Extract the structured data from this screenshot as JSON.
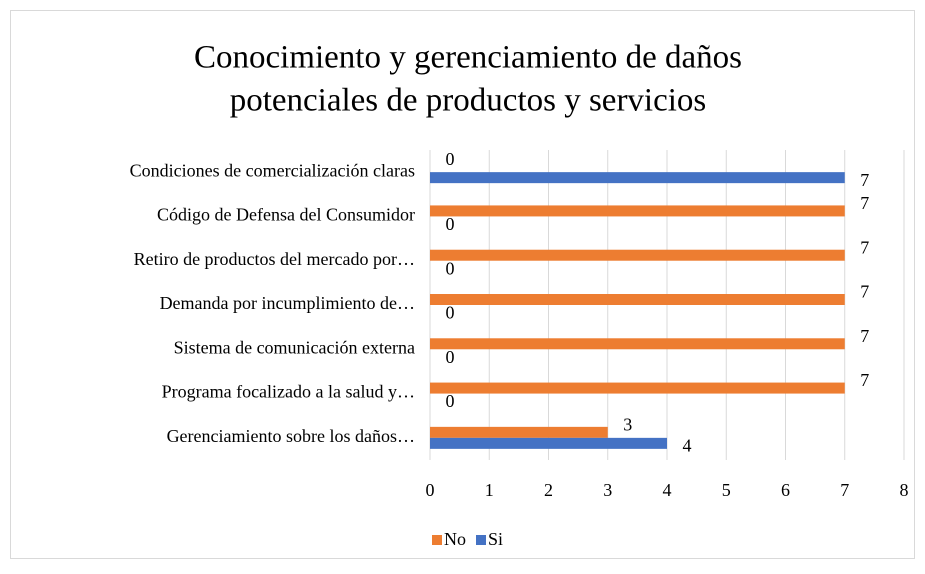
{
  "chart_data": {
    "type": "hbar",
    "title": [
      "Conocimiento y gerenciamiento de daños",
      "potenciales de productos y servicios"
    ],
    "categories": [
      "Condiciones de comercialización claras",
      "Código de Defensa del Consumidor",
      "Retiro de productos del mercado por…",
      "Demanda por incumplimiento de…",
      "Sistema de comunicación externa",
      "Programa focalizado a la salud y…",
      "Gerenciamiento sobre los daños…"
    ],
    "series": [
      {
        "name": "No",
        "color": "#ed7d31",
        "values": [
          0,
          7,
          7,
          7,
          7,
          7,
          3
        ]
      },
      {
        "name": "Si",
        "color": "#4472c4",
        "values": [
          7,
          0,
          0,
          0,
          0,
          0,
          4
        ]
      }
    ],
    "xlim": [
      0,
      8
    ],
    "xticks": [
      0,
      1,
      2,
      3,
      4,
      5,
      6,
      7,
      8
    ],
    "grid": true,
    "legend": "bottom"
  }
}
